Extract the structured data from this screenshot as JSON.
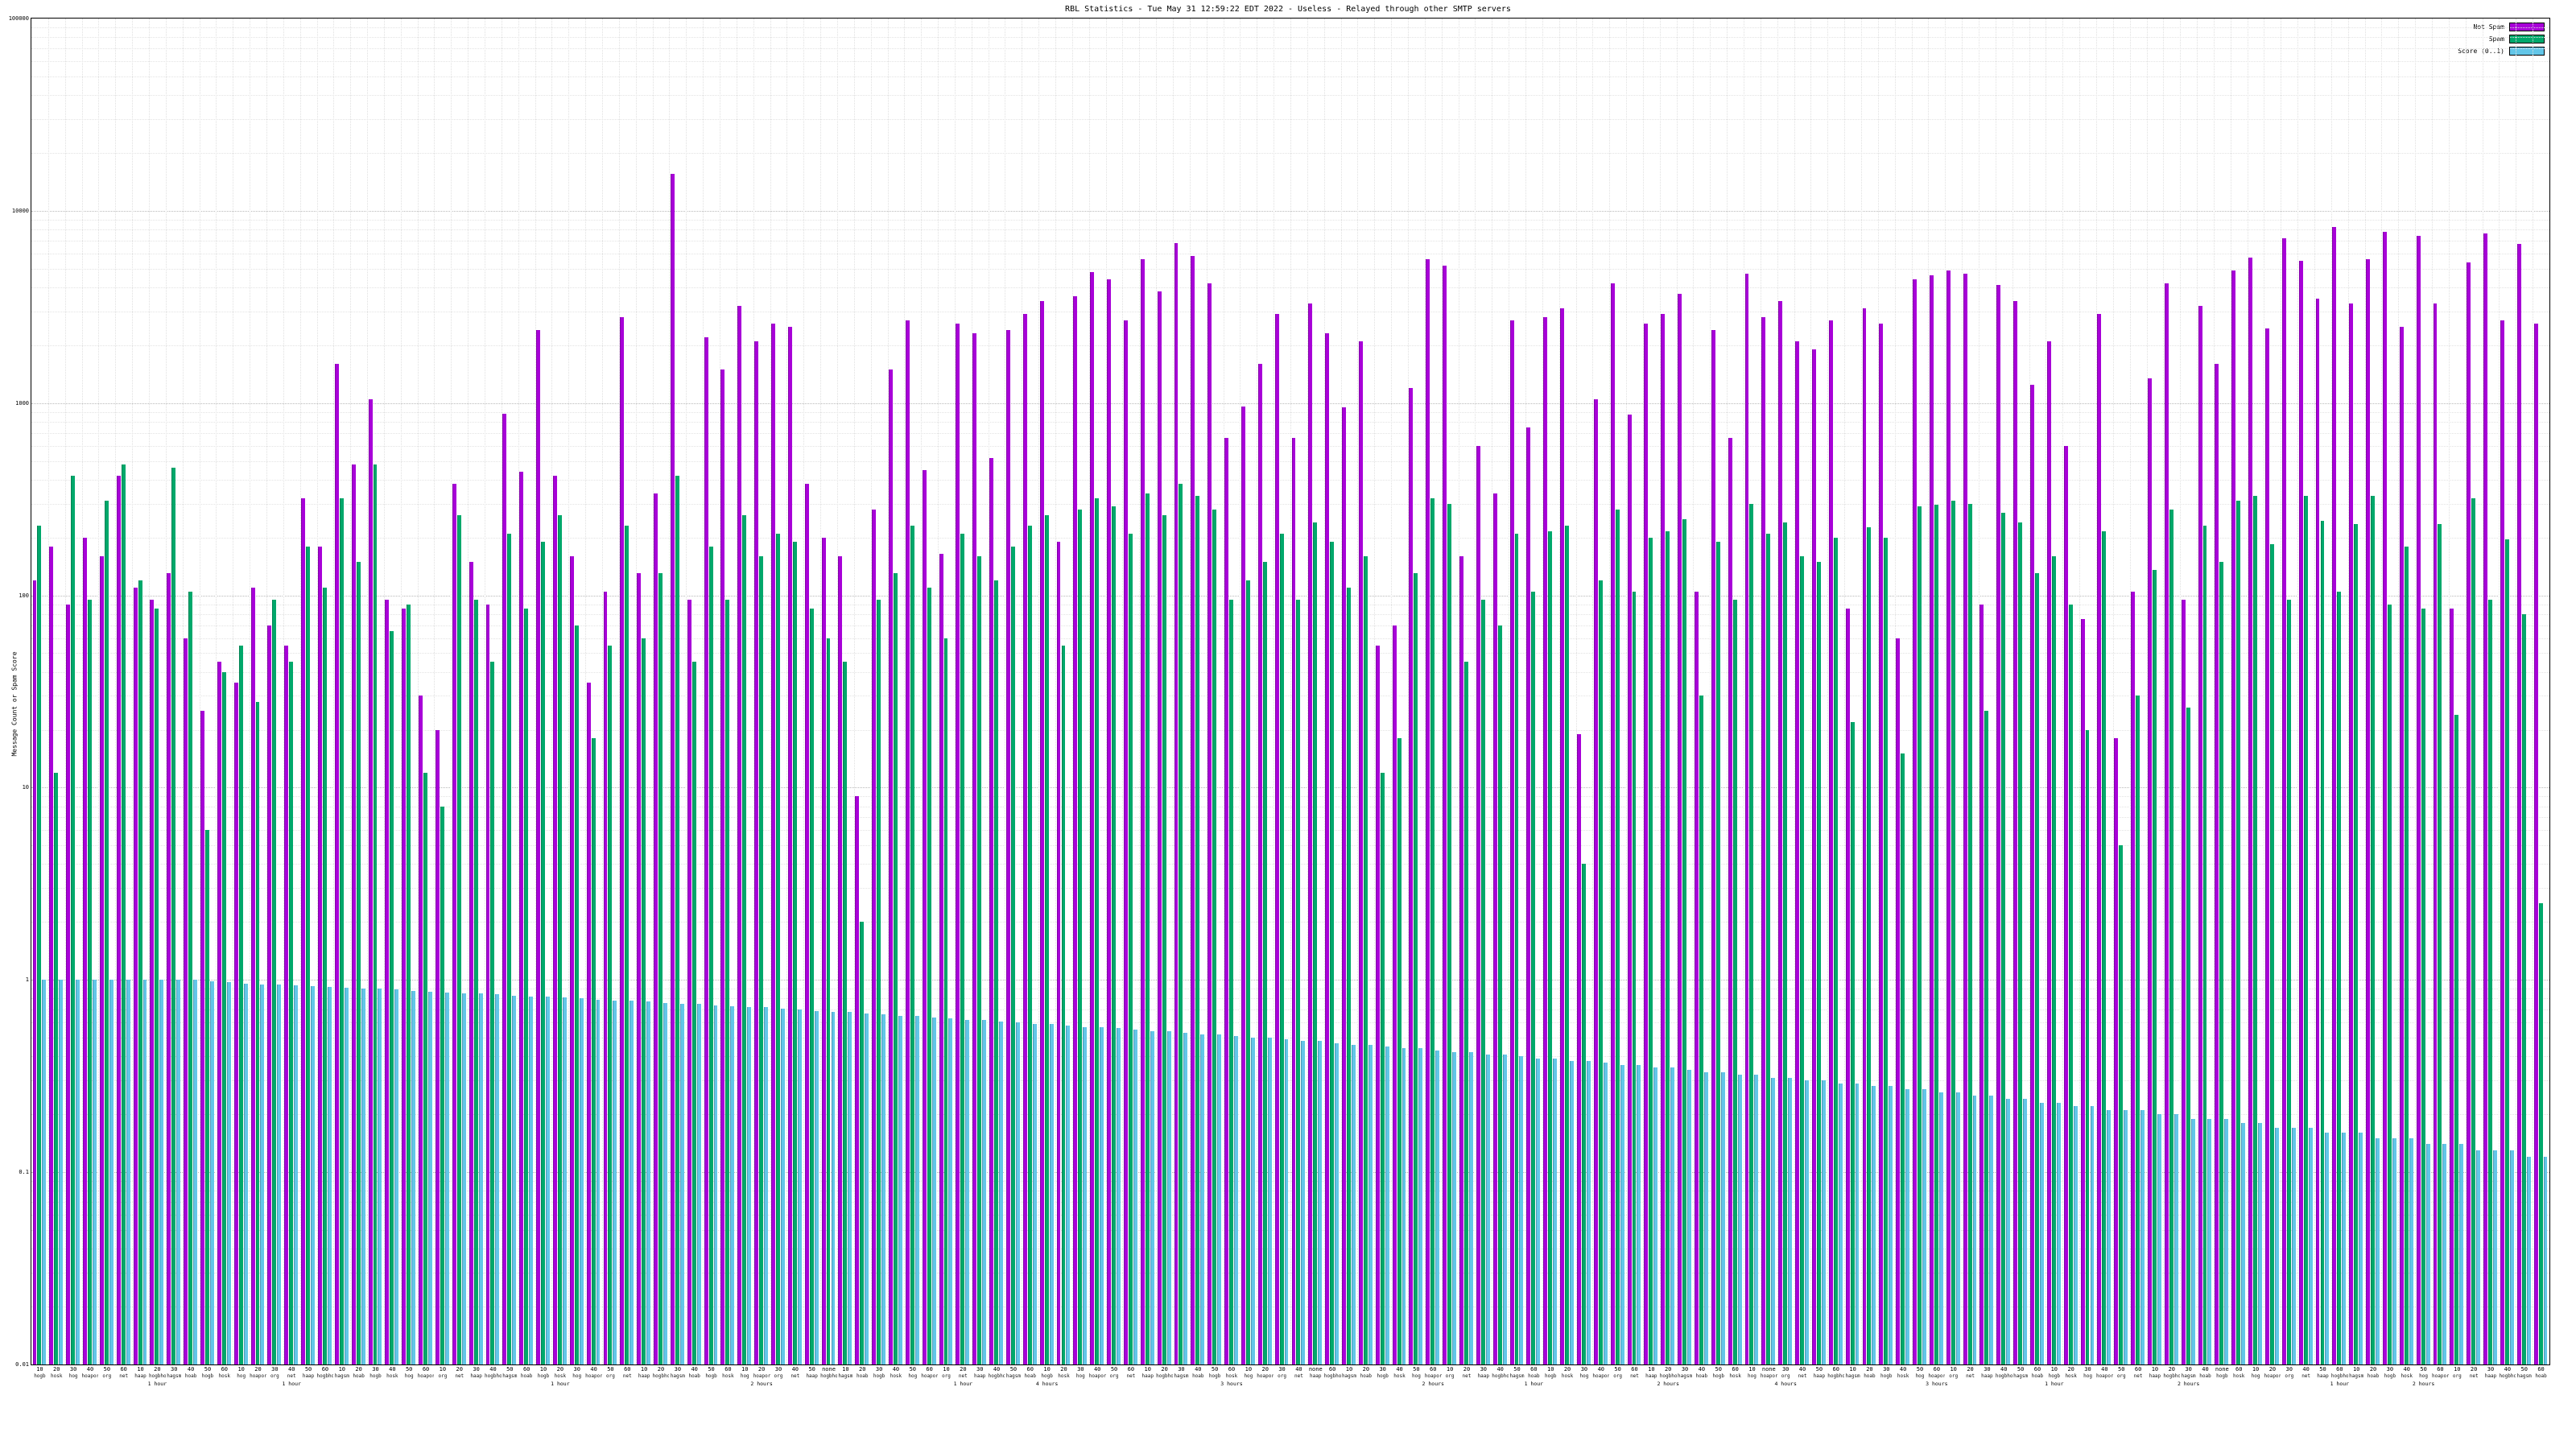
{
  "title": "RBL Statistics - Tue May 31 12:59:22 EDT 2022 - Useless - Relayed through other SMTP servers",
  "ylabel": "Message Count or Spam Score",
  "legend": [
    {
      "label": "Not Spam",
      "color": "#a800d8"
    },
    {
      "label": "Spam",
      "color": "#00a86b"
    },
    {
      "label": "Score (0..1)",
      "color": "#63c6e8"
    }
  ],
  "chart_data": {
    "type": "bar",
    "log_y": true,
    "ylim": [
      0.01,
      100000
    ],
    "yticks": [
      100000,
      10000,
      1000,
      100,
      10,
      1,
      0.1,
      0.01
    ],
    "ytick_labels": [
      "100000",
      "10000",
      "1000",
      "100",
      "10",
      "1",
      "0.1",
      "0.01"
    ],
    "grid": true,
    "legend_position": "top-right",
    "categories": [
      "10",
      "20",
      "30",
      "40",
      "50",
      "60",
      "10",
      "20",
      "30",
      "40",
      "50",
      "60",
      "10",
      "20",
      "30",
      "40",
      "50",
      "60",
      "10",
      "20",
      "30",
      "40",
      "50",
      "60",
      "10",
      "20",
      "30",
      "40",
      "50",
      "60",
      "10",
      "20",
      "30",
      "40",
      "50",
      "60",
      "10",
      "20",
      "30",
      "40",
      "50",
      "60",
      "10",
      "20",
      "30",
      "40",
      "50",
      "none",
      "10",
      "20",
      "30",
      "40",
      "50",
      "60",
      "10",
      "20",
      "30",
      "40",
      "50",
      "60",
      "10",
      "20",
      "30",
      "40",
      "50",
      "60",
      "10",
      "20",
      "30",
      "40",
      "50",
      "60",
      "10",
      "20",
      "30",
      "40",
      "none",
      "60",
      "10",
      "20",
      "30",
      "40",
      "50",
      "60",
      "10",
      "20",
      "30",
      "40",
      "50",
      "60",
      "10",
      "20",
      "30",
      "40",
      "50",
      "60",
      "10",
      "20",
      "30",
      "40",
      "50",
      "60",
      "10",
      "none",
      "30",
      "40",
      "50",
      "60",
      "10",
      "20",
      "30",
      "40",
      "50",
      "60",
      "10",
      "20",
      "30",
      "40",
      "50",
      "60",
      "10",
      "20",
      "30",
      "40",
      "50",
      "60",
      "10",
      "20",
      "30",
      "40",
      "none",
      "60",
      "10",
      "20",
      "30",
      "40",
      "50",
      "60",
      "10",
      "20",
      "30",
      "40",
      "50",
      "60",
      "10",
      "20",
      "30",
      "40",
      "50",
      "60"
    ],
    "x_sublabels": [
      "hogb",
      "hosk",
      "hog",
      "hoapora",
      "org",
      "net",
      "haap",
      "hogbhosk",
      "hagsm",
      "hoab",
      "hogb",
      "hosk",
      "hog",
      "hoapora",
      "org",
      "net",
      "haap",
      "hogbhosk",
      "hagsm",
      "hoab",
      "hogb",
      "hosk",
      "hog",
      "hoapora",
      "org",
      "net",
      "haap",
      "hogbhosk",
      "hagsm",
      "hoab",
      "hogb",
      "hosk",
      "hog",
      "hoapora",
      "org",
      "net",
      "haap",
      "hogbhosk",
      "hagsm",
      "hoab",
      "hogb",
      "hosk",
      "hog",
      "hoapora",
      "org",
      "net",
      "haap",
      "hogbhosk",
      "hagsm",
      "hoab",
      "hogb",
      "hosk",
      "hog",
      "hoapora",
      "org",
      "net",
      "haap",
      "hogbhosk",
      "hagsm",
      "hoab",
      "hogb",
      "hosk",
      "hog",
      "hoapora",
      "org",
      "net",
      "haap",
      "hogbhosk",
      "hagsm",
      "hoab",
      "hogb",
      "hosk",
      "hog",
      "hoapora",
      "org",
      "net",
      "haap",
      "hogbhosk",
      "hagsm",
      "hoab",
      "hogb",
      "hosk",
      "hog",
      "hoapora",
      "org",
      "net",
      "haap",
      "hogbhosk",
      "hagsm",
      "hoab",
      "hogb",
      "hosk",
      "hog",
      "hoapora",
      "org",
      "net",
      "haap",
      "hogbhosk",
      "hagsm",
      "hoab",
      "hogb",
      "hosk",
      "hog",
      "hoapora",
      "org",
      "net",
      "haap",
      "hogbhosk",
      "hagsm",
      "hoab",
      "hogb",
      "hosk",
      "hog",
      "hoapora",
      "org",
      "net",
      "haap",
      "hogbhosk",
      "hagsm",
      "hoab",
      "hogb",
      "hosk",
      "hog",
      "hoapora",
      "org",
      "net",
      "haap",
      "hogbhosk",
      "hagsm",
      "hoab",
      "hogb",
      "hosk",
      "hog",
      "hoapora",
      "org",
      "net",
      "haap",
      "hogbhosk",
      "hagsm",
      "hoab",
      "hogb",
      "hosk",
      "hog",
      "hoapora",
      "org",
      "net",
      "haap",
      "hogbhosk",
      "hagsm",
      "hoab"
    ],
    "x_duration_labels": {
      "7": "1 hour",
      "15": "1 hour",
      "31": "1 hour",
      "43": "2 hours",
      "55": "1 hour",
      "60": "4 hours",
      "71": "3 hours",
      "83": "2 hours",
      "89": "1 hour",
      "97": "2 hours",
      "104": "4 hours",
      "113": "3 hours",
      "120": "1 hour",
      "128": "2 hours",
      "137": "1 hour",
      "142": "2 hours"
    },
    "series": [
      {
        "name": "Not Spam",
        "color": "#a800d8",
        "values": [
          120,
          180,
          90,
          200,
          160,
          420,
          110,
          95,
          130,
          60,
          25,
          45,
          35,
          110,
          70,
          55,
          320,
          180,
          1600,
          480,
          1050,
          95,
          85,
          30,
          20,
          380,
          150,
          90,
          880,
          440,
          2400,
          420,
          160,
          35,
          105,
          2800,
          130,
          340,
          15500,
          95,
          2200,
          1500,
          3200,
          2100,
          2600,
          2500,
          380,
          200,
          160,
          9,
          280,
          1500,
          2700,
          450,
          165,
          2600,
          2300,
          520,
          2400,
          2900,
          3400,
          190,
          3600,
          4800,
          4400,
          2700,
          5600,
          3800,
          6800,
          5800,
          4200,
          660,
          960,
          1600,
          2900,
          660,
          3300,
          2300,
          950,
          2100,
          55,
          70,
          1200,
          5600,
          5200,
          160,
          600,
          340,
          2700,
          750,
          2800,
          3100,
          19,
          1050,
          4200,
          870,
          2600,
          2900,
          3700,
          105,
          2400,
          660,
          4700,
          2800,
          3400,
          2100,
          1900,
          2700,
          85,
          3100,
          2600,
          60,
          4400,
          4600,
          4900,
          4700,
          90,
          4100,
          3400,
          1250,
          2100,
          600,
          75,
          2900,
          18,
          105,
          1350,
          4200,
          95,
          3200,
          1600,
          4900,
          5700,
          2450,
          7200,
          5500,
          3500,
          8200,
          3300,
          5600,
          7800,
          2500,
          7400,
          3300,
          85,
          5400,
          7600,
          2700,
          6700,
          2600
        ]
      },
      {
        "name": "Spam",
        "color": "#00a86b",
        "values": [
          230,
          12,
          420,
          95,
          310,
          480,
          120,
          85,
          460,
          105,
          6,
          40,
          55,
          28,
          95,
          45,
          180,
          110,
          320,
          150,
          480,
          65,
          90,
          12,
          8,
          260,
          95,
          45,
          210,
          85,
          190,
          260,
          70,
          18,
          55,
          230,
          60,
          130,
          420,
          45,
          180,
          95,
          260,
          160,
          210,
          190,
          85,
          60,
          45,
          2,
          95,
          130,
          230,
          110,
          60,
          210,
          160,
          120,
          180,
          230,
          260,
          55,
          280,
          320,
          290,
          210,
          340,
          260,
          380,
          330,
          280,
          95,
          120,
          150,
          210,
          95,
          240,
          190,
          110,
          160,
          12,
          18,
          130,
          320,
          300,
          45,
          95,
          70,
          210,
          105,
          215,
          230,
          4,
          120,
          280,
          105,
          200,
          215,
          250,
          30,
          190,
          95,
          300,
          210,
          240,
          160,
          150,
          200,
          22,
          225,
          200,
          15,
          290,
          295,
          310,
          300,
          25,
          270,
          240,
          130,
          160,
          90,
          20,
          215,
          5,
          30,
          135,
          280,
          26,
          230,
          150,
          310,
          330,
          185,
          95,
          330,
          245,
          105,
          235,
          330,
          90,
          180,
          85,
          235,
          24,
          320,
          95,
          195,
          80,
          2.5
        ]
      },
      {
        "name": "Score (0..1)",
        "color": "#63c6e8",
        "values": [
          1.0,
          1.0,
          1.0,
          1.0,
          1.0,
          1.0,
          1.0,
          1.0,
          1.0,
          1.0,
          0.98,
          0.97,
          0.96,
          0.95,
          0.95,
          0.94,
          0.93,
          0.92,
          0.91,
          0.9,
          0.9,
          0.89,
          0.88,
          0.87,
          0.86,
          0.85,
          0.85,
          0.84,
          0.83,
          0.82,
          0.82,
          0.81,
          0.8,
          0.79,
          0.78,
          0.78,
          0.77,
          0.76,
          0.75,
          0.75,
          0.74,
          0.73,
          0.72,
          0.72,
          0.71,
          0.7,
          0.69,
          0.68,
          0.68,
          0.67,
          0.66,
          0.65,
          0.65,
          0.64,
          0.63,
          0.62,
          0.62,
          0.61,
          0.6,
          0.59,
          0.59,
          0.58,
          0.57,
          0.57,
          0.56,
          0.55,
          0.54,
          0.54,
          0.53,
          0.52,
          0.52,
          0.51,
          0.5,
          0.5,
          0.49,
          0.48,
          0.48,
          0.47,
          0.46,
          0.46,
          0.45,
          0.44,
          0.44,
          0.43,
          0.42,
          0.42,
          0.41,
          0.41,
          0.4,
          0.39,
          0.39,
          0.38,
          0.38,
          0.37,
          0.36,
          0.36,
          0.35,
          0.35,
          0.34,
          0.33,
          0.33,
          0.32,
          0.32,
          0.31,
          0.31,
          0.3,
          0.3,
          0.29,
          0.29,
          0.28,
          0.28,
          0.27,
          0.27,
          0.26,
          0.26,
          0.25,
          0.25,
          0.24,
          0.24,
          0.23,
          0.23,
          0.22,
          0.22,
          0.21,
          0.21,
          0.21,
          0.2,
          0.2,
          0.19,
          0.19,
          0.19,
          0.18,
          0.18,
          0.17,
          0.17,
          0.17,
          0.16,
          0.16,
          0.16,
          0.15,
          0.15,
          0.15,
          0.14,
          0.14,
          0.14,
          0.13,
          0.13,
          0.13,
          0.12,
          0.12
        ]
      }
    ]
  }
}
